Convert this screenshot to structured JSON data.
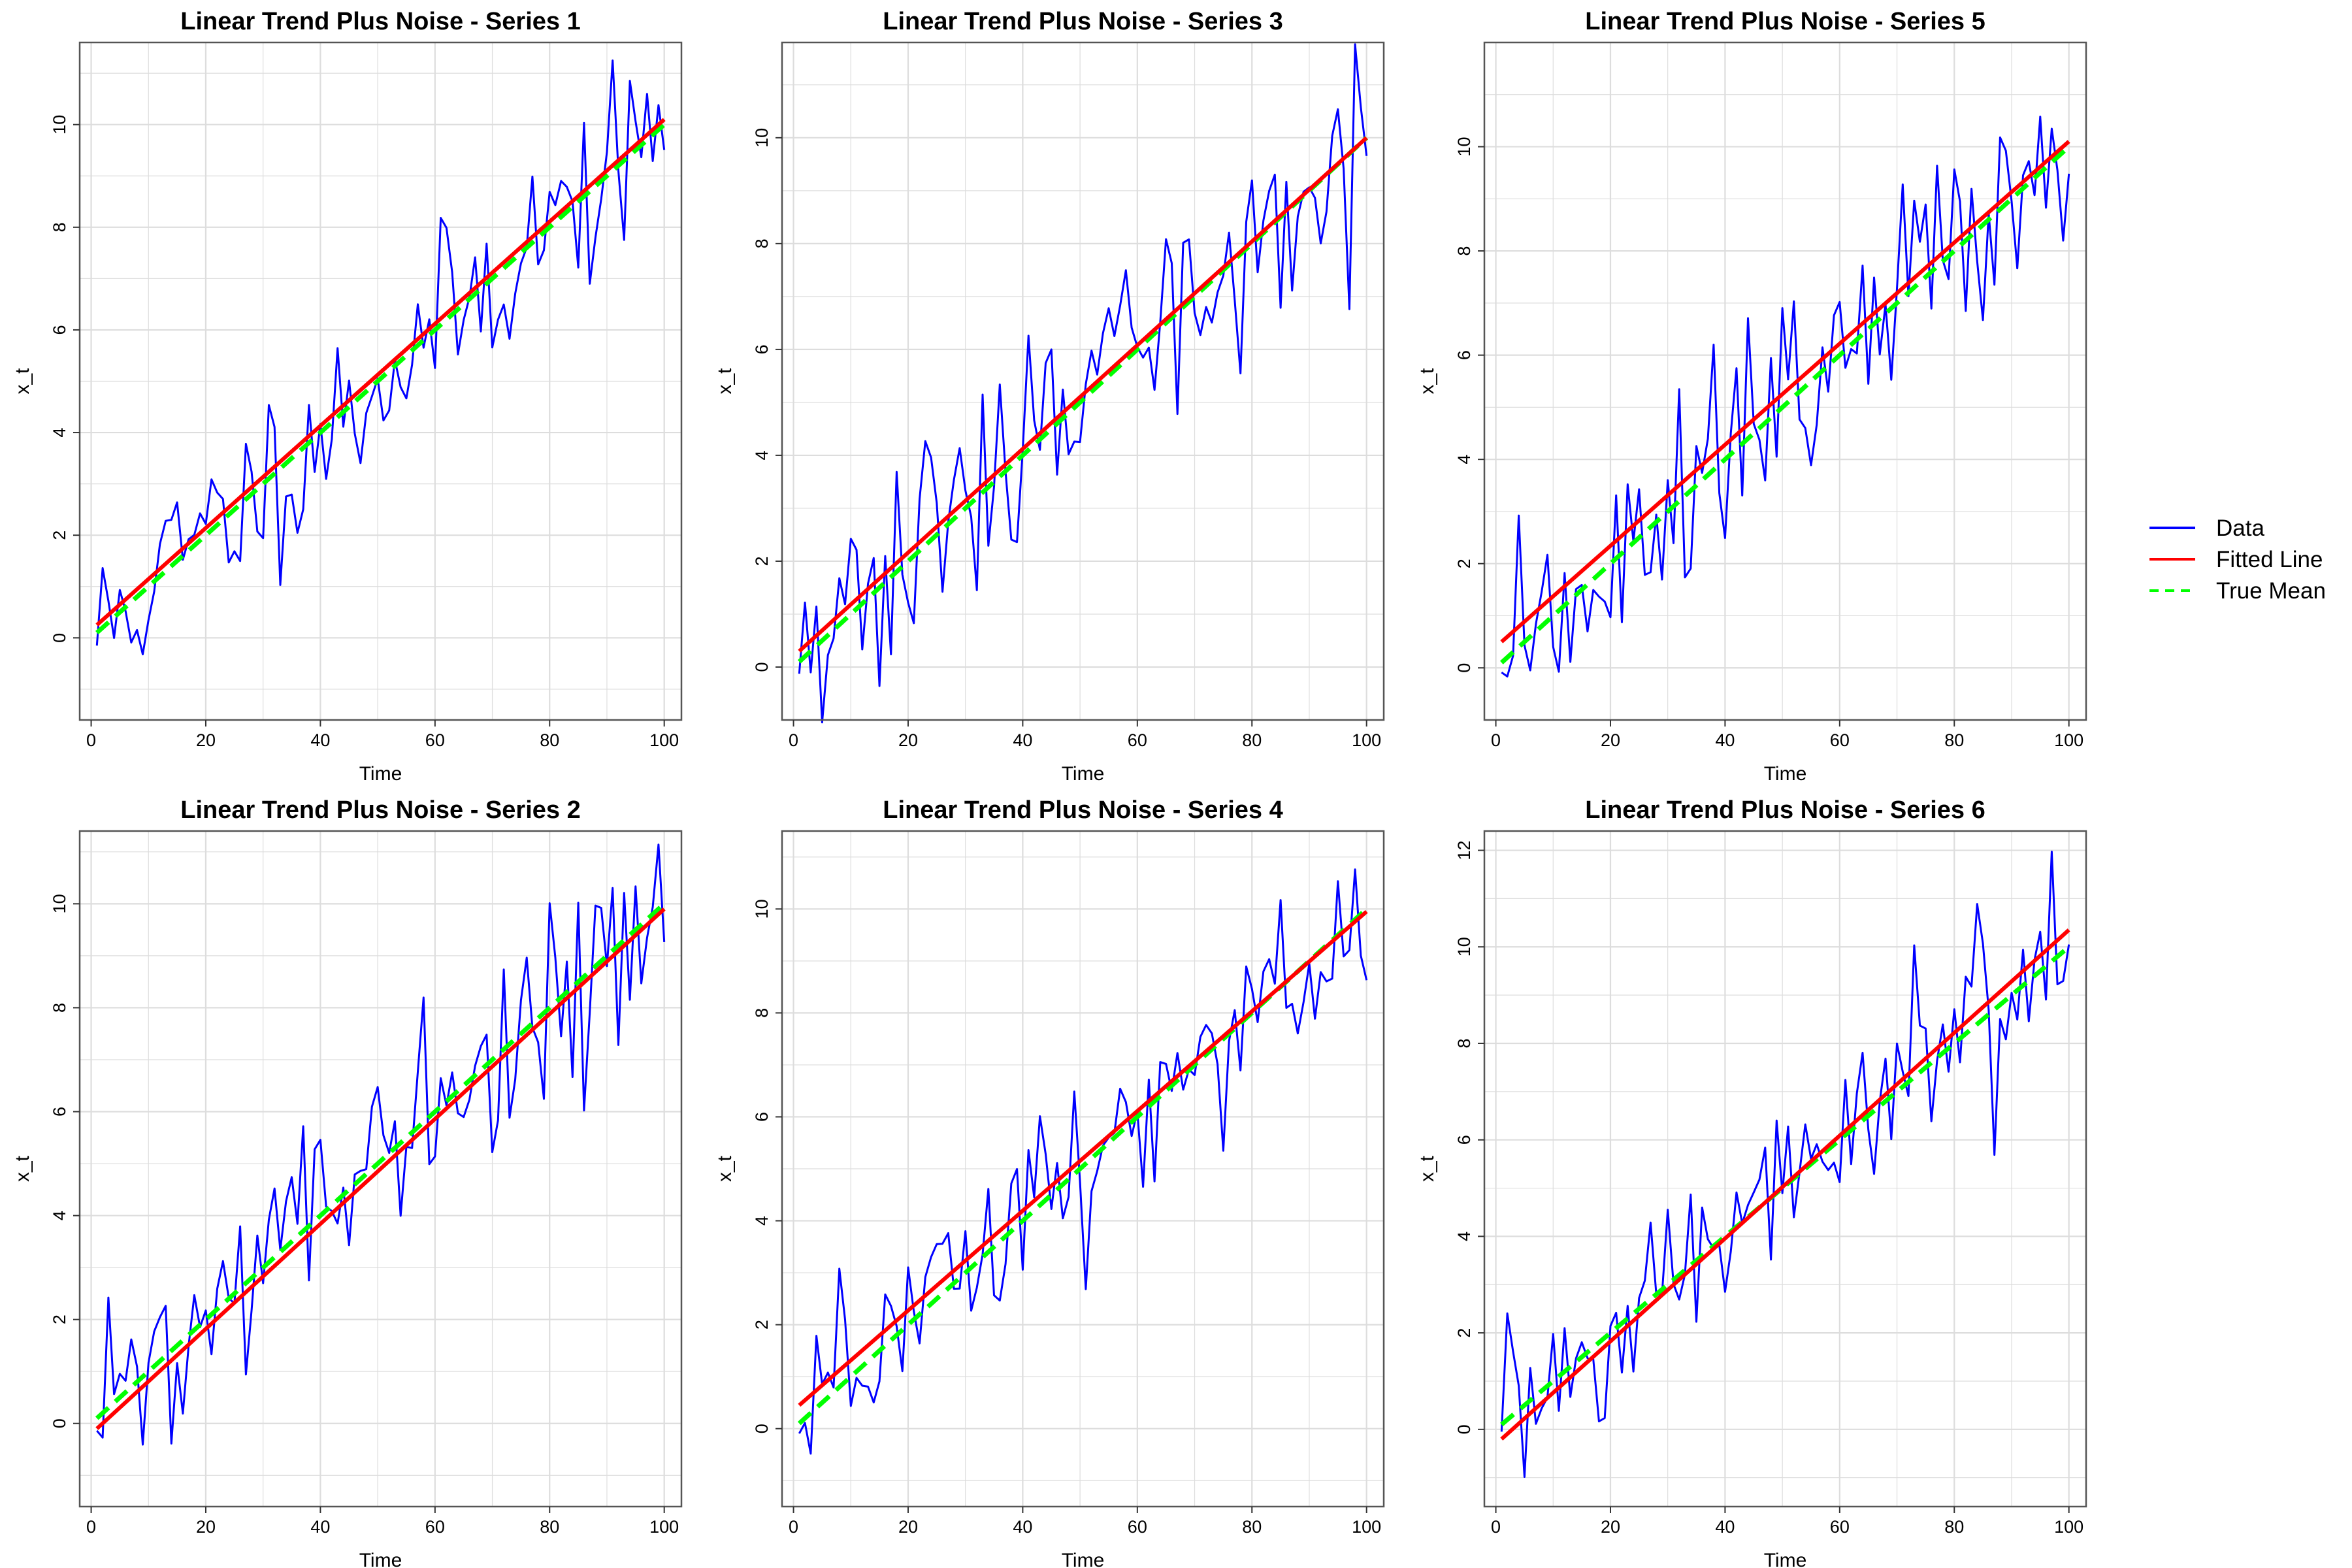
{
  "chart_data": [
    {
      "type": "line",
      "title": "Linear Trend Plus Noise - Series 1",
      "xlabel": "Time",
      "ylabel": "x_t",
      "xlim": [
        -2,
        103
      ],
      "ylim": [
        -1.6,
        11.6
      ],
      "xticks": [
        0,
        20,
        40,
        60,
        80,
        100
      ],
      "yticks": [
        0,
        2,
        4,
        6,
        8,
        10
      ],
      "grid": true,
      "seed": 11,
      "noise_sd": 0.9,
      "series": [
        {
          "name": "Data",
          "x_range": [
            1,
            100
          ],
          "values_summary": "approx. 0.1t + noise, from -1.2 to 11"
        },
        {
          "name": "Fitted Line",
          "x": [
            1,
            100
          ],
          "y": [
            0.25,
            10.1
          ]
        },
        {
          "name": "True Mean",
          "x": [
            1,
            100
          ],
          "y": [
            0.1,
            10.0
          ]
        }
      ]
    },
    {
      "type": "line",
      "title": "Linear Trend Plus Noise - Series 3",
      "xlabel": "Time",
      "ylabel": "x_t",
      "xlim": [
        -2,
        103
      ],
      "ylim": [
        -1.0,
        11.8
      ],
      "xticks": [
        0,
        20,
        40,
        60,
        80,
        100
      ],
      "yticks": [
        0,
        2,
        4,
        6,
        8,
        10
      ],
      "grid": true,
      "seed": 33,
      "noise_sd": 1.0,
      "series": [
        {
          "name": "Data",
          "x_range": [
            1,
            100
          ],
          "values_summary": "approx. 0.1t + noise, from -0.5 to 11.2"
        },
        {
          "name": "Fitted Line",
          "x": [
            1,
            100
          ],
          "y": [
            0.3,
            10.0
          ]
        },
        {
          "name": "True Mean",
          "x": [
            1,
            100
          ],
          "y": [
            0.1,
            10.0
          ]
        }
      ]
    },
    {
      "type": "line",
      "title": "Linear Trend Plus Noise - Series 5",
      "xlabel": "Time",
      "ylabel": "x_t",
      "xlim": [
        -2,
        103
      ],
      "ylim": [
        -1.0,
        12.0
      ],
      "xticks": [
        0,
        20,
        40,
        60,
        80,
        100
      ],
      "yticks": [
        0,
        2,
        4,
        6,
        8,
        10
      ],
      "grid": true,
      "seed": 55,
      "noise_sd": 1.05,
      "series": [
        {
          "name": "Data",
          "x_range": [
            1,
            100
          ],
          "values_summary": "approx. 0.1t + noise, from -0.5 to 11.5"
        },
        {
          "name": "Fitted Line",
          "x": [
            1,
            100
          ],
          "y": [
            0.5,
            10.1
          ]
        },
        {
          "name": "True Mean",
          "x": [
            1,
            100
          ],
          "y": [
            0.1,
            10.0
          ]
        }
      ]
    },
    {
      "type": "line",
      "title": "Linear Trend Plus Noise - Series 2",
      "xlabel": "Time",
      "ylabel": "x_t",
      "xlim": [
        -2,
        103
      ],
      "ylim": [
        -1.6,
        11.4
      ],
      "xticks": [
        0,
        20,
        40,
        60,
        80,
        100
      ],
      "yticks": [
        0,
        2,
        4,
        6,
        8,
        10
      ],
      "grid": true,
      "seed": 22,
      "noise_sd": 0.95,
      "series": [
        {
          "name": "Data",
          "x_range": [
            1,
            100
          ],
          "values_summary": "approx. 0.1t + noise, from -1.1 to 10.8"
        },
        {
          "name": "Fitted Line",
          "x": [
            1,
            100
          ],
          "y": [
            -0.1,
            9.9
          ]
        },
        {
          "name": "True Mean",
          "x": [
            1,
            100
          ],
          "y": [
            0.1,
            10.0
          ]
        }
      ]
    },
    {
      "type": "line",
      "title": "Linear Trend Plus Noise - Series 4",
      "xlabel": "Time",
      "ylabel": "x_t",
      "xlim": [
        -2,
        103
      ],
      "ylim": [
        -1.5,
        11.5
      ],
      "xticks": [
        0,
        20,
        40,
        60,
        80,
        100
      ],
      "yticks": [
        0,
        2,
        4,
        6,
        8,
        10
      ],
      "grid": true,
      "seed": 44,
      "noise_sd": 0.95,
      "series": [
        {
          "name": "Data",
          "x_range": [
            1,
            100
          ],
          "values_summary": "approx. 0.1t + noise, from -1.0 to 11.0"
        },
        {
          "name": "Fitted Line",
          "x": [
            1,
            100
          ],
          "y": [
            0.45,
            9.95
          ]
        },
        {
          "name": "True Mean",
          "x": [
            1,
            100
          ],
          "y": [
            0.1,
            10.0
          ]
        }
      ]
    },
    {
      "type": "line",
      "title": "Linear Trend Plus Noise - Series 6",
      "xlabel": "Time",
      "ylabel": "x_t",
      "xlim": [
        -2,
        103
      ],
      "ylim": [
        -1.6,
        12.4
      ],
      "xticks": [
        0,
        20,
        40,
        60,
        80,
        100
      ],
      "yticks": [
        0,
        2,
        4,
        6,
        8,
        10,
        12
      ],
      "grid": true,
      "seed": 66,
      "noise_sd": 0.95,
      "series": [
        {
          "name": "Data",
          "x_range": [
            1,
            100
          ],
          "values_summary": "approx. 0.1t + noise, from -1.0 to 11.7"
        },
        {
          "name": "Fitted Line",
          "x": [
            1,
            100
          ],
          "y": [
            -0.2,
            10.35
          ]
        },
        {
          "name": "True Mean",
          "x": [
            1,
            100
          ],
          "y": [
            0.1,
            10.0
          ]
        }
      ]
    }
  ],
  "legend": {
    "placement": "right",
    "items": [
      {
        "label": "Data",
        "color": "#0000ff",
        "dash": "solid"
      },
      {
        "label": "Fitted Line",
        "color": "#ff0000",
        "dash": "solid"
      },
      {
        "label": "True Mean",
        "color": "#00ff00",
        "dash": "dashed"
      }
    ]
  },
  "colors": {
    "data": "#0000ff",
    "fitted": "#ff0000",
    "true_mean": "#00ff00",
    "grid": "#dddddd",
    "panel_border": "#555555"
  }
}
